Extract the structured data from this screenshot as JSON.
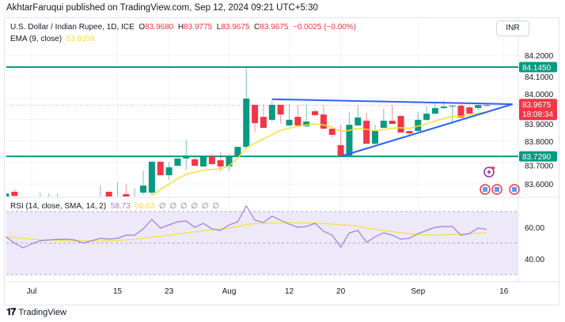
{
  "header": {
    "publisher_line": "AkhtarFaruqui published on TradingView.com, Sep 12, 2024 09:21 UTC+5:30"
  },
  "legend": {
    "symbol": "U.S. Dollar / Indian Rupee, 1D, ICE",
    "open_label": "O",
    "open": "83.9680",
    "high_label": "H",
    "high": "83.9775",
    "low_label": "L",
    "low": "83.9675",
    "close_label": "C",
    "close": "83.9675",
    "change": "−0.0025 (−0.00%)",
    "ema_label": "EMA (9, close)",
    "ema_value": "83.9359"
  },
  "currency_button": "INR",
  "colors": {
    "up": "#089981",
    "down": "#f23645",
    "ema": "#f7e03a",
    "trendline": "#2962ff",
    "level": "#089981",
    "rsi": "#9b7fe0",
    "rsi_sma": "#f7e03a",
    "rsi_band": "#ede9f9"
  },
  "price_axis": {
    "ticks": [
      "84.2000",
      "84.1000",
      "84.0000",
      "83.9000",
      "83.8000",
      "83.7000",
      "83.6000"
    ],
    "range": [
      83.545,
      84.26
    ],
    "tags": {
      "resistance": "84.1450",
      "current": "83.9675",
      "countdown": "18:08:34",
      "support": "83.7290"
    }
  },
  "levels": [
    84.145,
    83.729
  ],
  "current_price": 83.9675,
  "trendlines": [
    {
      "from": [
        "2024-08-08",
        83.995
      ],
      "to": [
        "2024-09-17",
        83.972
      ]
    },
    {
      "from": [
        "2024-08-20",
        83.729
      ],
      "to": [
        "2024-09-17",
        83.972
      ]
    }
  ],
  "chart_data": {
    "type": "candlestick",
    "first_date": "2024-06-26",
    "candles_columns": [
      "date",
      "open",
      "high",
      "low",
      "close"
    ],
    "candles": [
      [
        "2024-06-26",
        83.535,
        83.556,
        83.52,
        83.556
      ],
      [
        "2024-06-27",
        83.564,
        83.575,
        83.53,
        83.545
      ],
      [
        "2024-07-02",
        83.52,
        83.56,
        83.5,
        83.54
      ],
      [
        "2024-07-03",
        83.52,
        83.556,
        83.5,
        83.54
      ],
      [
        "2024-07-04",
        83.52,
        83.556,
        83.5,
        83.54
      ],
      [
        "2024-07-11",
        83.52,
        83.593,
        83.5,
        83.54
      ],
      [
        "2024-07-12",
        83.564,
        83.565,
        83.5,
        83.53
      ],
      [
        "2024-07-15",
        83.52,
        83.608,
        83.5,
        83.54
      ],
      [
        "2024-07-16",
        83.553,
        83.6,
        83.5,
        83.53
      ],
      [
        "2024-07-17",
        83.52,
        83.582,
        83.5,
        83.54
      ],
      [
        "2024-07-18",
        83.56,
        83.663,
        83.55,
        83.593
      ],
      [
        "2024-07-19",
        83.56,
        83.704,
        83.55,
        83.704
      ],
      [
        "2024-07-22",
        83.704,
        83.704,
        83.641,
        83.641
      ],
      [
        "2024-07-23",
        83.641,
        83.704,
        83.619,
        83.678
      ],
      [
        "2024-07-24",
        83.685,
        83.719,
        83.685,
        83.719
      ],
      [
        "2024-07-25",
        83.719,
        83.807,
        83.667,
        83.733
      ],
      [
        "2024-07-26",
        83.715,
        83.733,
        83.69,
        83.685
      ],
      [
        "2024-07-29",
        83.682,
        83.729,
        83.68,
        83.729
      ],
      [
        "2024-07-30",
        83.729,
        83.74,
        83.69,
        83.693
      ],
      [
        "2024-07-31",
        83.711,
        83.748,
        83.66,
        83.682
      ],
      [
        "2024-08-01",
        83.682,
        83.74,
        83.66,
        83.729
      ],
      [
        "2024-08-02",
        83.733,
        83.773,
        83.73,
        83.773
      ],
      [
        "2024-08-05",
        83.773,
        84.141,
        83.763,
        83.998
      ],
      [
        "2024-08-06",
        83.969,
        83.969,
        83.84,
        83.884
      ],
      [
        "2024-08-07",
        83.913,
        83.972,
        83.86,
        83.862
      ],
      [
        "2024-08-08",
        83.899,
        83.99,
        83.89,
        83.969
      ],
      [
        "2024-08-09",
        83.969,
        83.969,
        83.88,
        83.924
      ],
      [
        "2024-08-12",
        83.873,
        83.972,
        83.87,
        83.899
      ],
      [
        "2024-08-13",
        83.913,
        83.968,
        83.87,
        83.873
      ],
      [
        "2024-08-14",
        83.869,
        83.972,
        83.865,
        83.891
      ],
      [
        "2024-08-15",
        83.939,
        83.95,
        83.92,
        83.921
      ],
      [
        "2024-08-16",
        83.924,
        83.968,
        83.855,
        83.858
      ],
      [
        "2024-08-19",
        83.858,
        83.86,
        83.814,
        83.829
      ],
      [
        "2024-08-20",
        83.781,
        83.876,
        83.729,
        83.733
      ],
      [
        "2024-08-21",
        83.733,
        83.935,
        83.733,
        83.876
      ],
      [
        "2024-08-22",
        83.873,
        83.968,
        83.87,
        83.91
      ],
      [
        "2024-08-23",
        83.895,
        83.932,
        83.788,
        83.788
      ],
      [
        "2024-08-26",
        83.788,
        83.877,
        83.785,
        83.847
      ],
      [
        "2024-08-27",
        83.862,
        83.95,
        83.86,
        83.895
      ],
      [
        "2024-08-28",
        83.895,
        83.968,
        83.88,
        83.88
      ],
      [
        "2024-08-29",
        83.917,
        83.92,
        83.84,
        83.84
      ],
      [
        "2024-08-30",
        83.847,
        83.85,
        83.825,
        83.836
      ],
      [
        "2024-09-02",
        83.847,
        83.935,
        83.845,
        83.899
      ],
      [
        "2024-09-03",
        83.899,
        83.961,
        83.895,
        83.928
      ],
      [
        "2024-09-04",
        83.928,
        83.976,
        83.925,
        83.954
      ],
      [
        "2024-09-05",
        83.954,
        83.99,
        83.95,
        83.961
      ],
      [
        "2024-09-06",
        83.961,
        83.965,
        83.88,
        83.965
      ],
      [
        "2024-09-09",
        83.965,
        83.97,
        83.909,
        83.909
      ],
      [
        "2024-09-10",
        83.957,
        83.965,
        83.925,
        83.928
      ],
      [
        "2024-09-11",
        83.954,
        83.97,
        83.943,
        83.968
      ],
      [
        "2024-09-12",
        83.968,
        83.9775,
        83.9675,
        83.9675
      ]
    ],
    "ema9": [
      [
        "2024-07-19",
        83.546
      ],
      [
        "2024-07-22",
        83.575
      ],
      [
        "2024-07-23",
        83.6
      ],
      [
        "2024-07-24",
        83.625
      ],
      [
        "2024-07-25",
        83.645
      ],
      [
        "2024-07-26",
        83.655
      ],
      [
        "2024-07-29",
        83.665
      ],
      [
        "2024-07-30",
        83.668
      ],
      [
        "2024-07-31",
        83.67
      ],
      [
        "2024-08-01",
        83.685
      ],
      [
        "2024-08-02",
        83.72
      ],
      [
        "2024-08-05",
        83.77
      ],
      [
        "2024-08-06",
        83.79
      ],
      [
        "2024-08-07",
        83.81
      ],
      [
        "2024-08-08",
        83.83
      ],
      [
        "2024-08-09",
        83.85
      ],
      [
        "2024-08-12",
        83.86
      ],
      [
        "2024-08-13",
        83.87
      ],
      [
        "2024-08-14",
        83.875
      ],
      [
        "2024-08-15",
        83.88
      ],
      [
        "2024-08-16",
        83.875
      ],
      [
        "2024-08-19",
        83.865
      ],
      [
        "2024-08-20",
        83.845
      ],
      [
        "2024-08-21",
        83.85
      ],
      [
        "2024-08-22",
        83.86
      ],
      [
        "2024-08-23",
        83.855
      ],
      [
        "2024-08-26",
        83.85
      ],
      [
        "2024-08-27",
        83.855
      ],
      [
        "2024-08-28",
        83.86
      ],
      [
        "2024-08-29",
        83.862
      ],
      [
        "2024-08-30",
        83.86
      ],
      [
        "2024-09-02",
        83.87
      ],
      [
        "2024-09-03",
        83.88
      ],
      [
        "2024-09-04",
        83.895
      ],
      [
        "2024-09-05",
        83.905
      ],
      [
        "2024-09-06",
        83.915
      ],
      [
        "2024-09-09",
        83.915
      ],
      [
        "2024-09-10",
        83.92
      ],
      [
        "2024-09-11",
        83.93
      ],
      [
        "2024-09-12",
        83.936
      ]
    ],
    "rsi": {
      "label": "RSI (14, close, SMA, 14, 2)",
      "value": "58.73",
      "sma_value": "56.63",
      "null_values": "∅ ∅ ∅ ∅ ∅ ∅",
      "ticks": [
        "60.00",
        "40.00"
      ],
      "band": [
        30,
        70
      ],
      "values": [
        54,
        50,
        47,
        49.5,
        51.5,
        52,
        52.3,
        52.5,
        52,
        50,
        51.5,
        53,
        52.5,
        53,
        55,
        55,
        59,
        65,
        59.5,
        61.5,
        63.5,
        64,
        60,
        62.5,
        59,
        58,
        61.5,
        63.5,
        73.5,
        64.5,
        63,
        67,
        64.5,
        62,
        60,
        60.5,
        62.5,
        57.5,
        55,
        47.5,
        56.5,
        58,
        50.5,
        54,
        56.5,
        55,
        52.5,
        53,
        56,
        58,
        60,
        60.5,
        60.5,
        55,
        56,
        59.5,
        58.73
      ],
      "sma": [
        54,
        53.5,
        53,
        52.5,
        52,
        52,
        51.8,
        51.7,
        51.5,
        51.5,
        51.3,
        51.3,
        51.5,
        51.8,
        52,
        52.3,
        53,
        53.8,
        54.5,
        55,
        55.8,
        56.5,
        57.2,
        57.8,
        58.3,
        58.8,
        59.5,
        60.5,
        61.8,
        62.3,
        62.5,
        62.7,
        62.8,
        63,
        62.8,
        62.7,
        62.7,
        62.5,
        62,
        61.5,
        61.3,
        60.8,
        59.5,
        58.8,
        58,
        57.3,
        56.5,
        56,
        55.5,
        55.2,
        55,
        55.2,
        55.5,
        55.8,
        56,
        56.2,
        56.63
      ]
    },
    "time_axis": [
      {
        "label": "Jul",
        "date": "2024-07-01"
      },
      {
        "label": "15",
        "date": "2024-07-15"
      },
      {
        "label": "23",
        "date": "2024-07-23"
      },
      {
        "label": "Aug",
        "date": "2024-08-01"
      },
      {
        "label": "12",
        "date": "2024-08-12"
      },
      {
        "label": "20",
        "date": "2024-08-20"
      },
      {
        "label": "Sep",
        "date": "2024-09-02"
      },
      {
        "label": "16",
        "date": "2024-09-16"
      }
    ]
  },
  "footer": {
    "brand": "TradingView",
    "logo_text": "17"
  }
}
